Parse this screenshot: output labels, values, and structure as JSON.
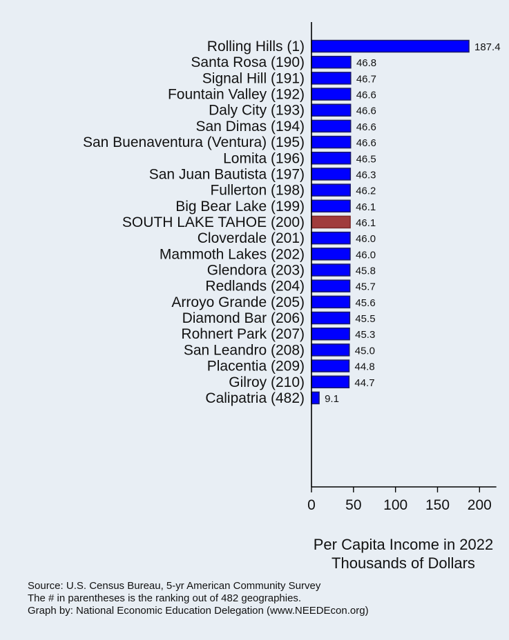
{
  "chart_data": {
    "type": "bar",
    "orientation": "horizontal",
    "categories": [
      "Rolling Hills  (1)",
      "Santa Rosa (190)",
      "Signal Hill (191)",
      "Fountain Valley (192)",
      "Daly City (193)",
      "San Dimas (194)",
      "San Buenaventura (Ventura) (195)",
      "Lomita (196)",
      "San Juan Bautista (197)",
      "Fullerton (198)",
      "Big Bear Lake (199)",
      "SOUTH LAKE TAHOE (200)",
      "Cloverdale (201)",
      "Mammoth Lakes (202)",
      "Glendora (203)",
      "Redlands (204)",
      "Arroyo Grande (205)",
      "Diamond Bar (206)",
      "Rohnert Park (207)",
      "San Leandro (208)",
      "Placentia (209)",
      "Gilroy (210)",
      "Calipatria (482)"
    ],
    "values": [
      187.4,
      46.8,
      46.7,
      46.6,
      46.6,
      46.6,
      46.6,
      46.5,
      46.3,
      46.2,
      46.1,
      46.1,
      46.0,
      46.0,
      45.8,
      45.7,
      45.6,
      45.5,
      45.3,
      45.0,
      44.8,
      44.7,
      9.1
    ],
    "value_labels": [
      "187.4",
      "46.8",
      "46.7",
      "46.6",
      "46.6",
      "46.6",
      "46.6",
      "46.5",
      "46.3",
      "46.2",
      "46.1",
      "46.1",
      "46.0",
      "46.0",
      "45.8",
      "45.7",
      "45.6",
      "45.5",
      "45.3",
      "45.0",
      "44.8",
      "44.7",
      "9.1"
    ],
    "highlight_category": "SOUTH LAKE TAHOE (200)",
    "xlabel_lines": [
      "Per Capita Income in 2022",
      "Thousands of Dollars"
    ],
    "xlim": [
      0,
      220
    ],
    "xticks": [
      0,
      50,
      100,
      150,
      200
    ],
    "grid": false,
    "colors": {
      "bar": "#0000ff",
      "bar_outline": "#1a1a66",
      "highlight": "#a03c3c",
      "highlight_outline": "#7a2a2a",
      "axis": "#000000",
      "background": "#e8eef4"
    }
  },
  "notes": {
    "source": "Source: U.S. Census Bureau, 5-yr American Community Survey",
    "ranking": "The # in parentheses is the ranking out of 482 geographies.",
    "credit": "Graph by: National Economic Education Delegation (www.NEEDEcon.org)"
  }
}
